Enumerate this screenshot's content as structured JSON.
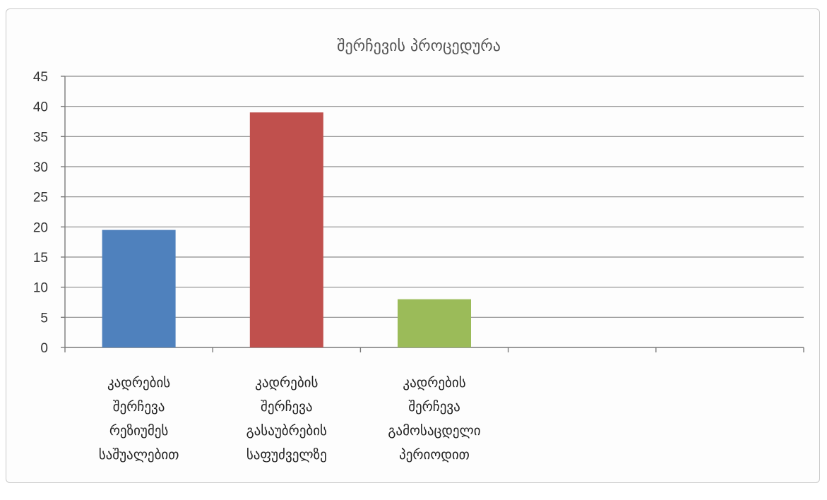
{
  "chart_data": {
    "type": "bar",
    "title": "შერჩევის პროცედურა",
    "xlabel": "",
    "ylabel": "",
    "ylim": [
      0,
      45
    ],
    "yticks": [
      0,
      5,
      10,
      15,
      20,
      25,
      30,
      35,
      40,
      45
    ],
    "grid": true,
    "legend": "none",
    "categories": [
      [
        "კადრების",
        "შერჩევა",
        "რეზიუმეს",
        "საშუალებით"
      ],
      [
        "კადრების",
        "შერჩევა",
        "გასაუბრების",
        "საფუძველზე"
      ],
      [
        "კადრების",
        "შერჩევა",
        "გამოსაცდელი",
        "პერიოდით"
      ],
      [],
      []
    ],
    "values": [
      19.5,
      39,
      8,
      null,
      null
    ],
    "colors": [
      "#4f81bd",
      "#c0504d",
      "#9bbb59"
    ]
  }
}
